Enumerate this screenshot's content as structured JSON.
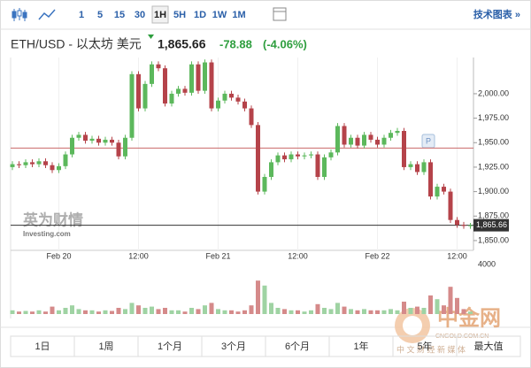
{
  "toolbar": {
    "intervals": [
      "1",
      "5",
      "15",
      "30",
      "1H",
      "5H",
      "1D",
      "1W",
      "1M"
    ],
    "active": "1H",
    "link": "技术图表 »"
  },
  "header": {
    "symbol": "ETH/USD - 以太坊 美元",
    "price": "1,865.66",
    "change": "-78.88",
    "change_pct": "(-4.06%)"
  },
  "watermarks": {
    "brand_cn": "英为财情",
    "brand_en": "Investing.com",
    "site": "中金网",
    "site_url": "CNGOLD.COM.CN",
    "site_slogan": "中 文 财 经 新 媒 体"
  },
  "marker": "P",
  "range_buttons": [
    "1日",
    "1周",
    "1个月",
    "3个月",
    "6个月",
    "1年",
    "5年",
    "最大值"
  ],
  "chart_data": {
    "type": "candlestick",
    "categories": [
      null,
      null,
      null,
      null,
      null,
      null,
      null,
      null,
      null,
      null,
      null,
      null,
      null,
      null,
      null,
      null,
      null,
      null,
      null,
      null,
      null,
      null,
      null,
      null,
      null,
      null,
      null,
      null,
      null,
      null,
      null,
      null,
      null,
      null,
      null,
      null,
      null,
      null,
      null,
      null,
      null,
      null,
      null,
      null,
      null,
      null,
      null,
      null,
      null,
      null,
      null,
      null,
      null,
      null,
      null,
      null,
      null,
      null,
      null,
      null,
      null,
      null,
      null,
      null,
      null,
      null,
      null,
      null,
      null,
      null
    ],
    "open": [
      1925,
      1928,
      1927,
      1930,
      1928,
      1931,
      1927,
      1922,
      1926,
      1938,
      1955,
      1958,
      1952,
      1954,
      1950,
      1953,
      1950,
      1936,
      1955,
      2020,
      1985,
      2010,
      2030,
      2026,
      1990,
      2000,
      2005,
      2001,
      2030,
      2003,
      2032,
      1985,
      1993,
      2000,
      1996,
      1992,
      1985,
      1968,
      1900,
      1915,
      1930,
      1937,
      1933,
      1938,
      1936,
      1937,
      1938,
      1915,
      1935,
      1940,
      1967,
      1948,
      1955,
      1947,
      1958,
      1953,
      1948,
      1955,
      1960,
      1962,
      1925,
      1928,
      1920,
      1930,
      1895,
      1905,
      1900,
      1871,
      1866,
      1865
    ],
    "high": [
      1931,
      1931,
      1933,
      1933,
      1934,
      1934,
      1930,
      1929,
      1941,
      1958,
      1961,
      1961,
      1957,
      1957,
      1956,
      1956,
      1953,
      1958,
      2023,
      2023,
      2013,
      2033,
      2033,
      2029,
      2003,
      2008,
      2008,
      2033,
      2033,
      2035,
      2035,
      1996,
      2003,
      2003,
      1999,
      1995,
      1988,
      1971,
      1918,
      1933,
      1940,
      1940,
      1941,
      1941,
      1940,
      1941,
      1941,
      1938,
      1943,
      1970,
      1970,
      1958,
      1958,
      1961,
      1961,
      1956,
      1958,
      1963,
      1965,
      1965,
      1931,
      1931,
      1933,
      1933,
      1908,
      1908,
      1903,
      1874,
      1869,
      1868
    ],
    "low": [
      1922,
      1924,
      1924,
      1925,
      1925,
      1924,
      1919,
      1919,
      1923,
      1935,
      1952,
      1949,
      1949,
      1947,
      1947,
      1947,
      1933,
      1933,
      1952,
      1982,
      1982,
      2007,
      2023,
      1987,
      1987,
      1997,
      1998,
      1998,
      2000,
      2000,
      1982,
      1982,
      1990,
      1993,
      1989,
      1982,
      1965,
      1897,
      1897,
      1912,
      1927,
      1930,
      1930,
      1933,
      1933,
      1934,
      1912,
      1912,
      1932,
      1937,
      1945,
      1945,
      1944,
      1944,
      1950,
      1945,
      1945,
      1952,
      1957,
      1922,
      1922,
      1917,
      1917,
      1892,
      1892,
      1897,
      1868,
      1863,
      1862,
      1862
    ],
    "close": [
      1928,
      1927,
      1930,
      1928,
      1931,
      1927,
      1922,
      1926,
      1938,
      1955,
      1958,
      1952,
      1954,
      1950,
      1953,
      1950,
      1936,
      1955,
      2020,
      1985,
      2010,
      2030,
      2026,
      1990,
      2000,
      2005,
      2001,
      2030,
      2003,
      2032,
      1985,
      1993,
      2000,
      1996,
      1992,
      1985,
      1968,
      1900,
      1915,
      1930,
      1937,
      1933,
      1938,
      1936,
      1937,
      1938,
      1915,
      1935,
      1940,
      1967,
      1948,
      1955,
      1947,
      1958,
      1953,
      1948,
      1955,
      1960,
      1962,
      1925,
      1928,
      1920,
      1930,
      1895,
      1905,
      1900,
      1871,
      1866,
      1865,
      1865.66
    ],
    "volume": [
      300,
      200,
      250,
      200,
      300,
      200,
      600,
      300,
      500,
      700,
      400,
      300,
      300,
      200,
      300,
      250,
      500,
      400,
      900,
      700,
      500,
      600,
      400,
      500,
      300,
      300,
      200,
      500,
      400,
      700,
      900,
      400,
      300,
      300,
      200,
      300,
      700,
      2700,
      2300,
      900,
      500,
      400,
      300,
      300,
      200,
      300,
      800,
      500,
      400,
      900,
      600,
      400,
      300,
      400,
      300,
      300,
      300,
      400,
      300,
      1000,
      500,
      600,
      500,
      1500,
      1200,
      700,
      2200,
      1300,
      400,
      200
    ],
    "up_color": "#5cb85c",
    "down_color": "#b5434a",
    "volume_up_color": "#9fd3a3",
    "volume_down_color": "#d58a8a",
    "ylim": [
      1840,
      2037
    ],
    "yticks": [
      {
        "value": 2000,
        "label": "2,000.00"
      },
      {
        "value": 1975,
        "label": "1,975.00"
      },
      {
        "value": 1950,
        "label": "1,950.00"
      },
      {
        "value": 1925,
        "label": "1,925.00"
      },
      {
        "value": 1900,
        "label": "1,900.00"
      },
      {
        "value": 1875,
        "label": "1,875.00"
      },
      {
        "value": 1850,
        "label": "1,850.00"
      }
    ],
    "xticks": [
      {
        "value": 7,
        "label": "Feb 20"
      },
      {
        "value": 19,
        "label": "12:00"
      },
      {
        "value": 31,
        "label": "Feb 21"
      },
      {
        "value": 43,
        "label": "12:00"
      },
      {
        "value": 55,
        "label": "Feb 22"
      },
      {
        "value": 67,
        "label": "12:00"
      }
    ],
    "volume_lim": [
      0,
      4000
    ],
    "volume_ticks": [
      4000
    ],
    "reference_line": 1944.54,
    "last_price": {
      "value": 1865.66,
      "label": "1,865.66"
    }
  }
}
